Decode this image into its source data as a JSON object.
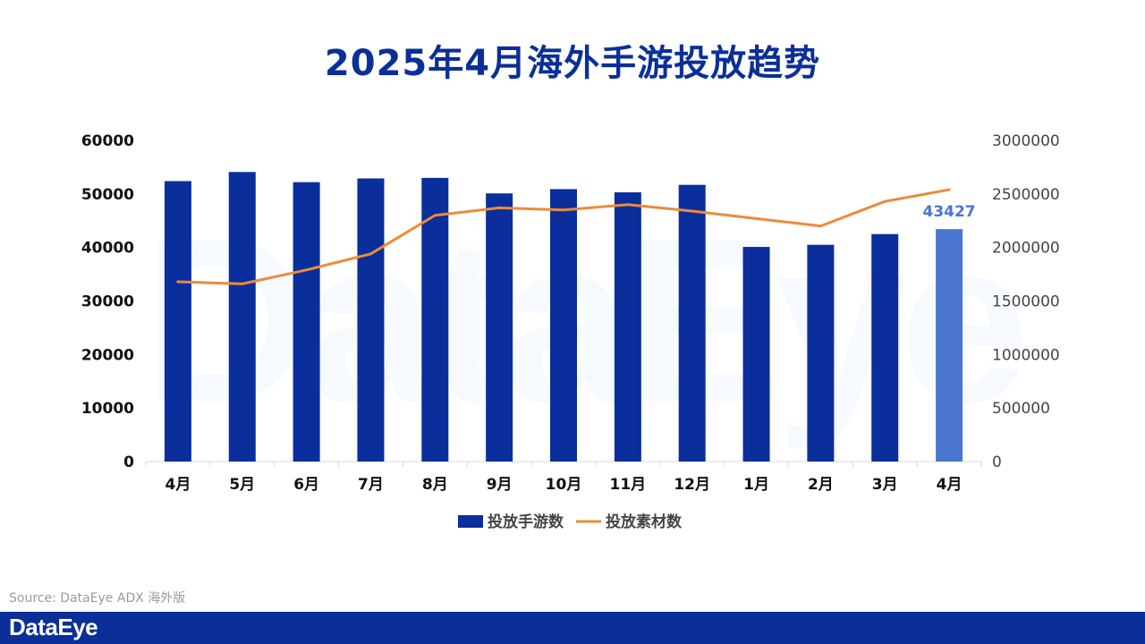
{
  "header": {
    "title": "2025年4月海外手游投放趋势"
  },
  "watermark": "DataEye",
  "chart_data": {
    "type": "bar",
    "title": "2025年4月海外手游投放趋势",
    "categories": [
      "4月",
      "5月",
      "6月",
      "7月",
      "8月",
      "9月",
      "10月",
      "11月",
      "12月",
      "1月",
      "2月",
      "3月",
      "4月"
    ],
    "series": [
      {
        "name": "投放手游数",
        "type": "bar",
        "axis": "left",
        "values": [
          52400,
          54100,
          52200,
          52900,
          53000,
          50100,
          50900,
          50300,
          51700,
          40100,
          40500,
          42500,
          43427
        ]
      },
      {
        "name": "投放素材数",
        "type": "line",
        "axis": "right",
        "values": [
          1680000,
          1660000,
          1790000,
          1940000,
          2300000,
          2370000,
          2350000,
          2400000,
          2340000,
          2270000,
          2200000,
          2430000,
          2540000
        ]
      }
    ],
    "left_axis": {
      "ylim": [
        0,
        60000
      ],
      "ticks": [
        "0",
        "10000",
        "20000",
        "30000",
        "40000",
        "50000",
        "60000"
      ]
    },
    "right_axis": {
      "ylim": [
        0,
        3000000
      ],
      "ticks": [
        "0",
        "500000",
        "1000000",
        "1500000",
        "2000000",
        "2500000",
        "3000000"
      ]
    },
    "annotations": [
      {
        "category_index": 12,
        "text": "43427"
      }
    ],
    "grid": false,
    "legend": "bottom-center",
    "colors": {
      "bar": "#0a2e9c",
      "bar_highlight": "#4a76d0",
      "line": "#ed8a3a",
      "label": "#4a76d0"
    }
  },
  "footer": {
    "source": "Source: DataEye ADX 海外版",
    "brand": "DataEye"
  }
}
